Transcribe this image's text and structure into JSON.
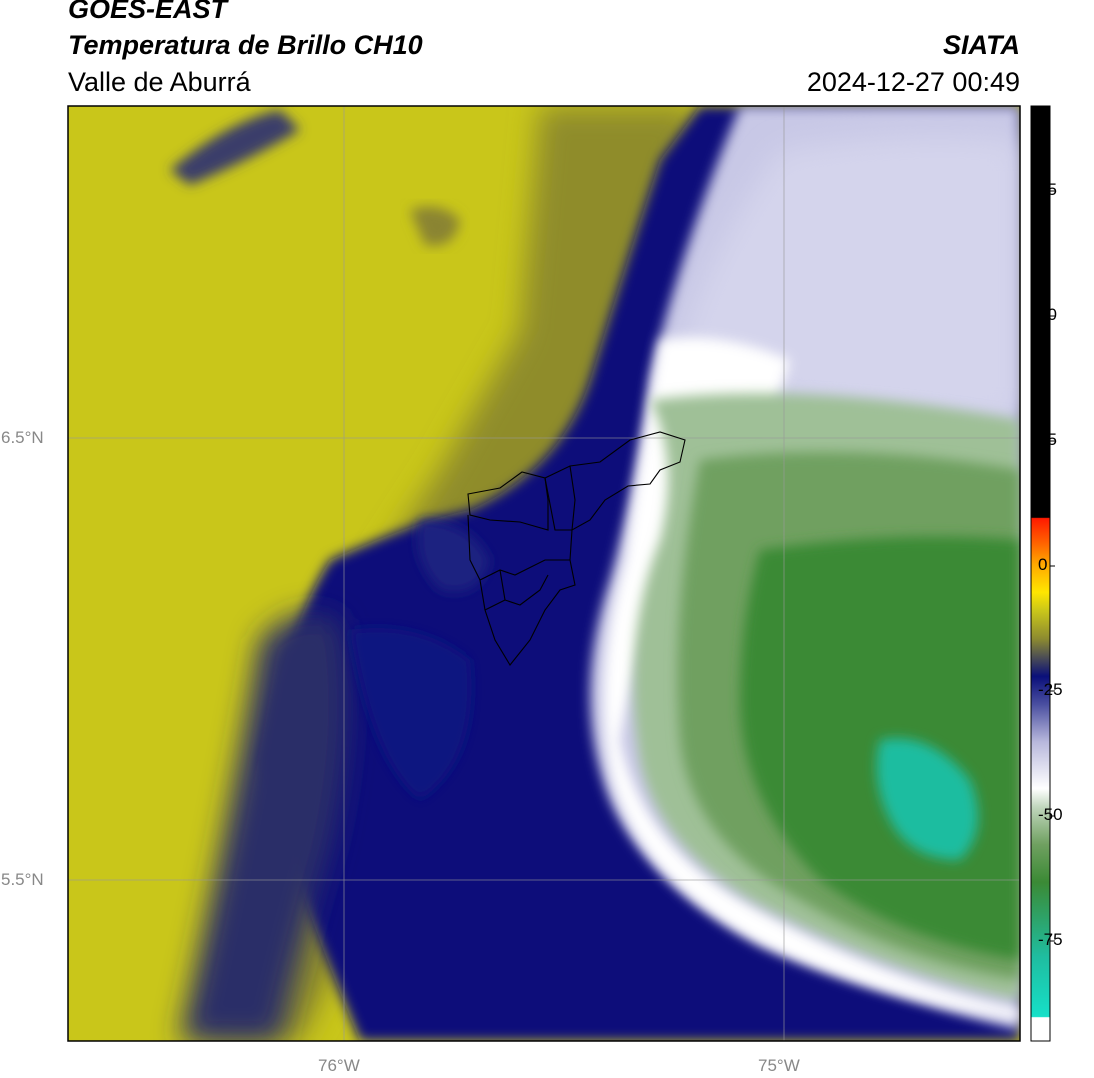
{
  "header": {
    "satellite": "GOES-EAST",
    "product": "Temperatura de Brillo CH10",
    "agency": "SIATA",
    "region": "Valle de Aburrá",
    "datetime": "2024-12-27 00:49"
  },
  "map": {
    "lat_labels": [
      "6.5°N",
      "5.5°N"
    ],
    "lon_labels": [
      "76°W",
      "75°W"
    ],
    "lon_range": [
      -76.62,
      -74.47
    ],
    "lat_range": [
      5.14,
      7.25
    ]
  },
  "colorbar": {
    "ticks": [
      "75",
      "50",
      "25",
      "0",
      "-25",
      "-50",
      "-75"
    ],
    "tick_values": [
      75,
      50,
      25,
      0,
      -25,
      -50,
      -75
    ],
    "range": [
      -95,
      92
    ],
    "colors": {
      "black": "#000000",
      "red": "#ff1a00",
      "orange": "#ff8a00",
      "yellow": "#ffe600",
      "olive": "#c9c61a",
      "navy": "#0a0f7a",
      "white": "#ffffff",
      "green": "#3b8a35",
      "teal": "#16e0c8"
    }
  }
}
